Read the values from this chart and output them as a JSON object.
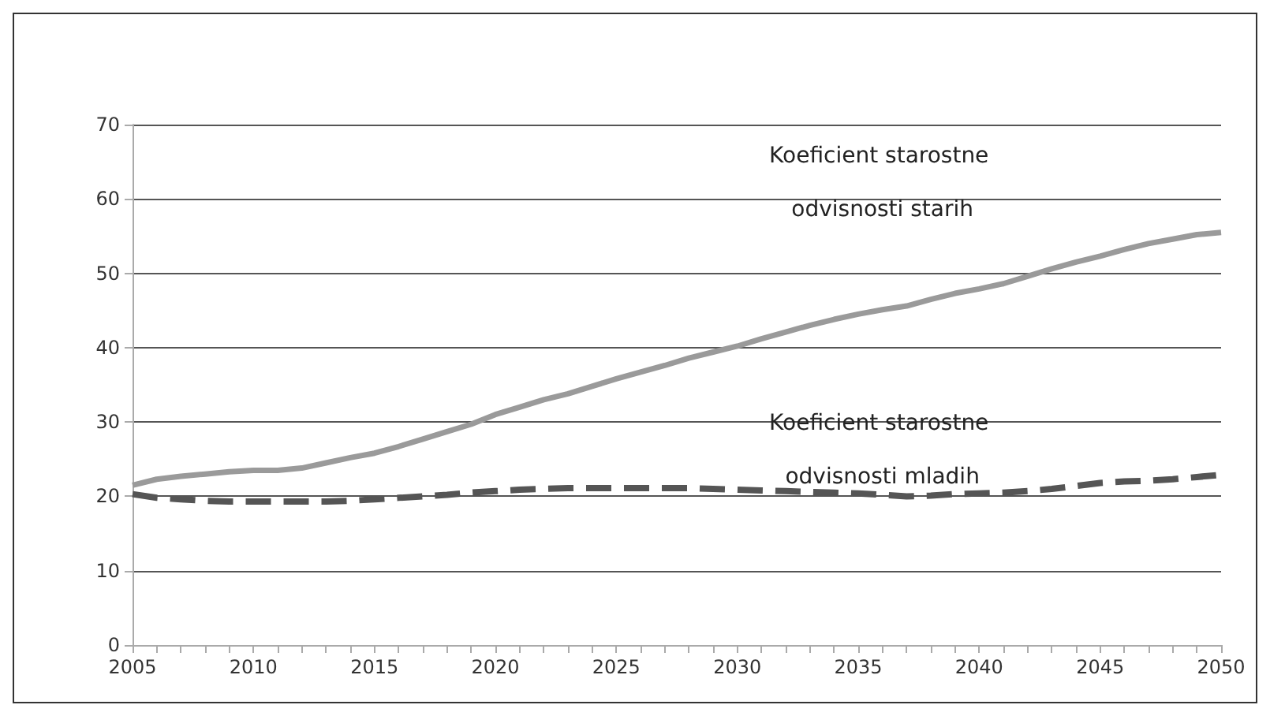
{
  "chart_data": {
    "type": "line",
    "categories": [
      "2005",
      null,
      null,
      null,
      null,
      "2010",
      null,
      null,
      null,
      null,
      "2015",
      null,
      null,
      null,
      null,
      "2020",
      null,
      null,
      null,
      null,
      "2025",
      null,
      null,
      null,
      null,
      "2030",
      null,
      null,
      null,
      null,
      "2035",
      null,
      null,
      null,
      null,
      "2040",
      null,
      null,
      null,
      null,
      "2045",
      null,
      null,
      null,
      null,
      "2050"
    ],
    "series": [
      {
        "name": "Koeficient starostne odvisnosti starih",
        "color": "#9a9a9a",
        "line_style": "solid",
        "values": [
          21.5,
          22.3,
          22.7,
          23,
          23.3,
          23.5,
          23.5,
          23.8,
          24.5,
          25.2,
          25.8,
          26.7,
          27.7,
          28.7,
          29.7,
          31,
          32,
          33,
          33.8,
          34.8,
          35.8,
          36.7,
          37.6,
          38.6,
          39.4,
          40.2,
          41.2,
          42.1,
          43,
          43.8,
          44.5,
          45.1,
          45.6,
          46.5,
          47.3,
          47.9,
          48.6,
          49.6,
          50.6,
          51.5,
          52.3,
          53.2,
          54,
          54.6,
          55.2,
          55.5
        ]
      },
      {
        "name": "Koeficient starostne odvisnosti mladih",
        "color": "#555555",
        "line_style": "dashed",
        "values": [
          20.3,
          19.8,
          19.6,
          19.4,
          19.3,
          19.3,
          19.3,
          19.3,
          19.3,
          19.4,
          19.6,
          19.8,
          20,
          20.2,
          20.5,
          20.7,
          20.9,
          21,
          21.1,
          21.1,
          21.1,
          21.1,
          21.1,
          21.1,
          21,
          20.9,
          20.8,
          20.7,
          20.6,
          20.5,
          20.4,
          20.2,
          20,
          20.1,
          20.3,
          20.4,
          20.5,
          20.7,
          21,
          21.4,
          21.8,
          22,
          22.1,
          22.3,
          22.6,
          22.9
        ]
      }
    ],
    "ylim": [
      0,
      70
    ],
    "yticks": [
      0,
      10,
      20,
      30,
      40,
      50,
      60,
      70
    ],
    "grid": "y",
    "legend": false,
    "marker": "none"
  }
}
